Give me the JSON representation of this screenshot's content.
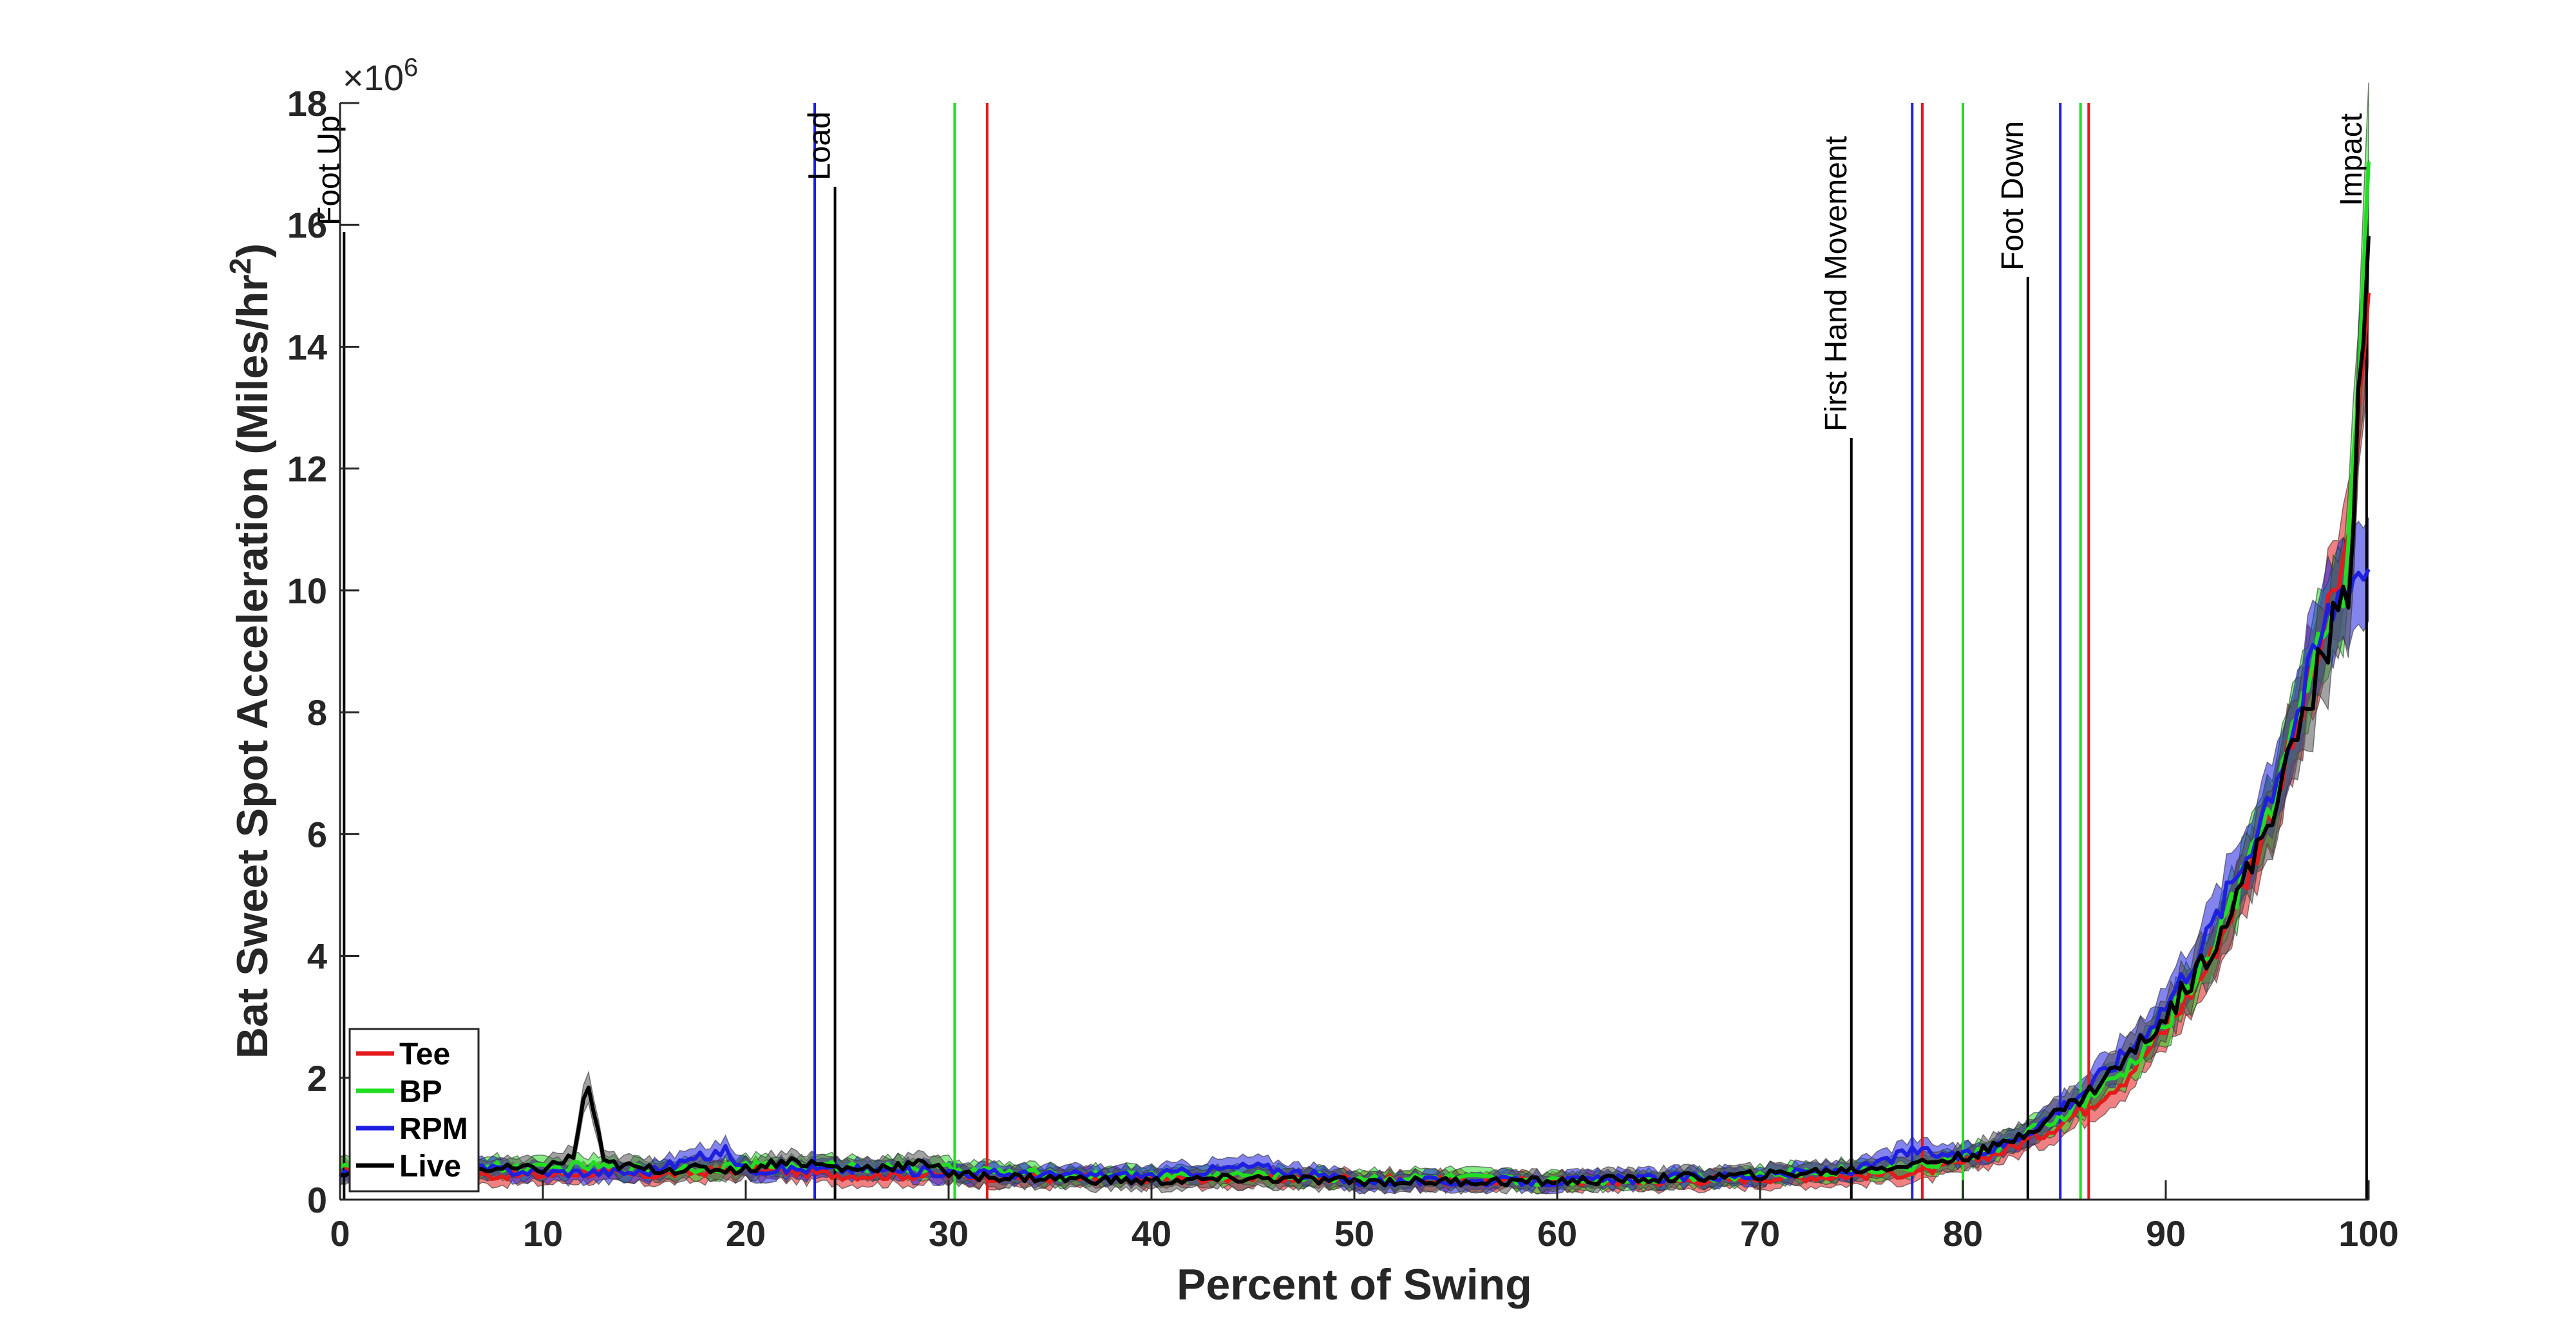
{
  "chart_data": {
    "type": "line",
    "xlabel": "Percent of Swing",
    "ylabel_prefix": "Bat Sweet Spot Acceleration (Miles/hr",
    "ylabel_sup": "2",
    "ylabel_suffix": ")",
    "y_multiplier_base": "×10",
    "y_multiplier_exp": "6",
    "xlim": [
      0,
      100
    ],
    "ylim": [
      0,
      18
    ],
    "x_ticks": [
      0,
      10,
      20,
      30,
      40,
      50,
      60,
      70,
      80,
      90,
      100
    ],
    "y_ticks": [
      0,
      2,
      4,
      6,
      8,
      10,
      12,
      14,
      16,
      18
    ],
    "legend_position": "bottom-left",
    "series": [
      {
        "name": "Tee",
        "color": "#e41a1c",
        "x": [
          0,
          2,
          5,
          7,
          10,
          12,
          15,
          20,
          25,
          30,
          35,
          40,
          45,
          50,
          55,
          60,
          65,
          70,
          75,
          78,
          80,
          82,
          84,
          86,
          88,
          90,
          92,
          94,
          96,
          98,
          99,
          100
        ],
        "y": [
          0.5,
          0.4,
          0.4,
          0.4,
          0.4,
          0.45,
          0.4,
          0.5,
          0.4,
          0.4,
          0.35,
          0.35,
          0.35,
          0.35,
          0.3,
          0.3,
          0.3,
          0.35,
          0.4,
          0.45,
          0.6,
          0.8,
          1.1,
          1.5,
          2.0,
          2.8,
          3.8,
          5.3,
          7.2,
          9.5,
          10.7,
          14.4
        ]
      },
      {
        "name": "BP",
        "color": "#22dd22",
        "x": [
          0,
          2,
          5,
          7,
          10,
          12,
          15,
          20,
          25,
          30,
          35,
          40,
          45,
          50,
          55,
          60,
          65,
          70,
          75,
          78,
          80,
          82,
          84,
          86,
          88,
          90,
          92,
          94,
          96,
          98,
          99,
          100
        ],
        "y": [
          0.6,
          0.5,
          0.5,
          0.55,
          0.5,
          0.55,
          0.5,
          0.55,
          0.55,
          0.5,
          0.4,
          0.4,
          0.4,
          0.35,
          0.35,
          0.3,
          0.35,
          0.4,
          0.5,
          0.55,
          0.7,
          0.9,
          1.2,
          1.6,
          2.1,
          2.9,
          3.9,
          5.4,
          7.3,
          9.5,
          10.4,
          16.8
        ]
      },
      {
        "name": "RPM",
        "color": "#1f1fe0",
        "x": [
          0,
          2,
          5,
          7,
          10,
          12,
          15,
          19,
          20,
          25,
          30,
          35,
          40,
          45,
          50,
          55,
          60,
          65,
          70,
          75,
          77.5,
          80,
          82,
          84,
          86,
          88,
          90,
          92,
          94,
          96,
          98,
          99,
          100
        ],
        "y": [
          0.4,
          0.4,
          0.45,
          0.5,
          0.45,
          0.45,
          0.45,
          0.8,
          0.5,
          0.5,
          0.45,
          0.4,
          0.4,
          0.55,
          0.3,
          0.3,
          0.3,
          0.35,
          0.4,
          0.5,
          0.8,
          0.7,
          0.9,
          1.3,
          1.8,
          2.4,
          3.2,
          4.3,
          5.7,
          7.5,
          9.6,
          10.3,
          10.4
        ]
      },
      {
        "name": "Live",
        "color": "#000000",
        "x": [
          0,
          2,
          5,
          7,
          10,
          11.5,
          12.2,
          13,
          15,
          20,
          22,
          25,
          29.5,
          30,
          35,
          40,
          45,
          50,
          55,
          60,
          65,
          70,
          75,
          78,
          80,
          82,
          84,
          86,
          88,
          90,
          92,
          94,
          96,
          98,
          99,
          100
        ],
        "y": [
          0.4,
          0.45,
          0.5,
          0.5,
          0.5,
          0.7,
          1.95,
          0.6,
          0.5,
          0.5,
          0.65,
          0.5,
          0.6,
          0.4,
          0.35,
          0.3,
          0.35,
          0.3,
          0.3,
          0.3,
          0.35,
          0.4,
          0.5,
          0.6,
          0.7,
          0.9,
          1.3,
          1.7,
          2.3,
          3.0,
          4.0,
          5.3,
          7.1,
          9.2,
          10.0,
          16.2
        ]
      }
    ],
    "event_lines": [
      {
        "x": 0.2,
        "color": "#000000",
        "label": "Foot Up"
      },
      {
        "x": 23.4,
        "color": "#1f1fe0",
        "label": ""
      },
      {
        "x": 24.4,
        "color": "#000000",
        "label": "Load"
      },
      {
        "x": 30.3,
        "color": "#22dd22",
        "label": ""
      },
      {
        "x": 31.9,
        "color": "#e41a1c",
        "label": ""
      },
      {
        "x": 74.5,
        "color": "#000000",
        "label": "First Hand Movement"
      },
      {
        "x": 77.5,
        "color": "#1f1fe0",
        "label": ""
      },
      {
        "x": 78.0,
        "color": "#e41a1c",
        "label": ""
      },
      {
        "x": 80.0,
        "color": "#22dd22",
        "label": ""
      },
      {
        "x": 83.2,
        "color": "#000000",
        "label": "Foot Down"
      },
      {
        "x": 84.8,
        "color": "#1f1fe0",
        "label": ""
      },
      {
        "x": 85.8,
        "color": "#22dd22",
        "label": ""
      },
      {
        "x": 86.2,
        "color": "#e41a1c",
        "label": ""
      },
      {
        "x": 99.9,
        "color": "#000000",
        "label": "Impact"
      }
    ]
  }
}
